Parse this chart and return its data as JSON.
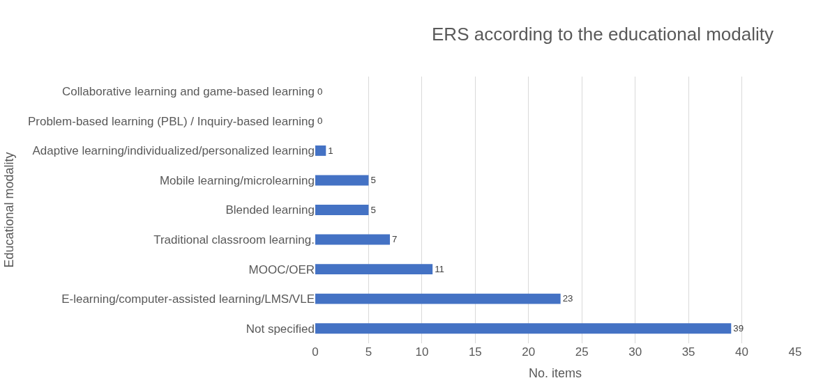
{
  "chart_data": {
    "type": "bar",
    "orientation": "horizontal",
    "title": "ERS according to the educational modality",
    "xlabel": "No. items",
    "ylabel": "Educational modality",
    "categories": [
      "Collaborative learning and game-based learning",
      "Problem-based learning (PBL) / Inquiry-based learning",
      "Adaptive learning/individualized/personalized learning",
      "Mobile learning/microlearning",
      "Blended learning",
      "Traditional classroom learning.",
      "MOOC/OER",
      "E-learning/computer-assisted learning/LMS/VLE",
      "Not specified"
    ],
    "values": [
      0,
      0,
      1,
      5,
      5,
      7,
      11,
      23,
      39
    ],
    "color": "#4472c4",
    "xlim": [
      0,
      45
    ],
    "xticks": [
      0,
      5,
      10,
      15,
      20,
      25,
      30,
      35,
      40,
      45
    ],
    "grid": "x",
    "data_labels": true
  }
}
